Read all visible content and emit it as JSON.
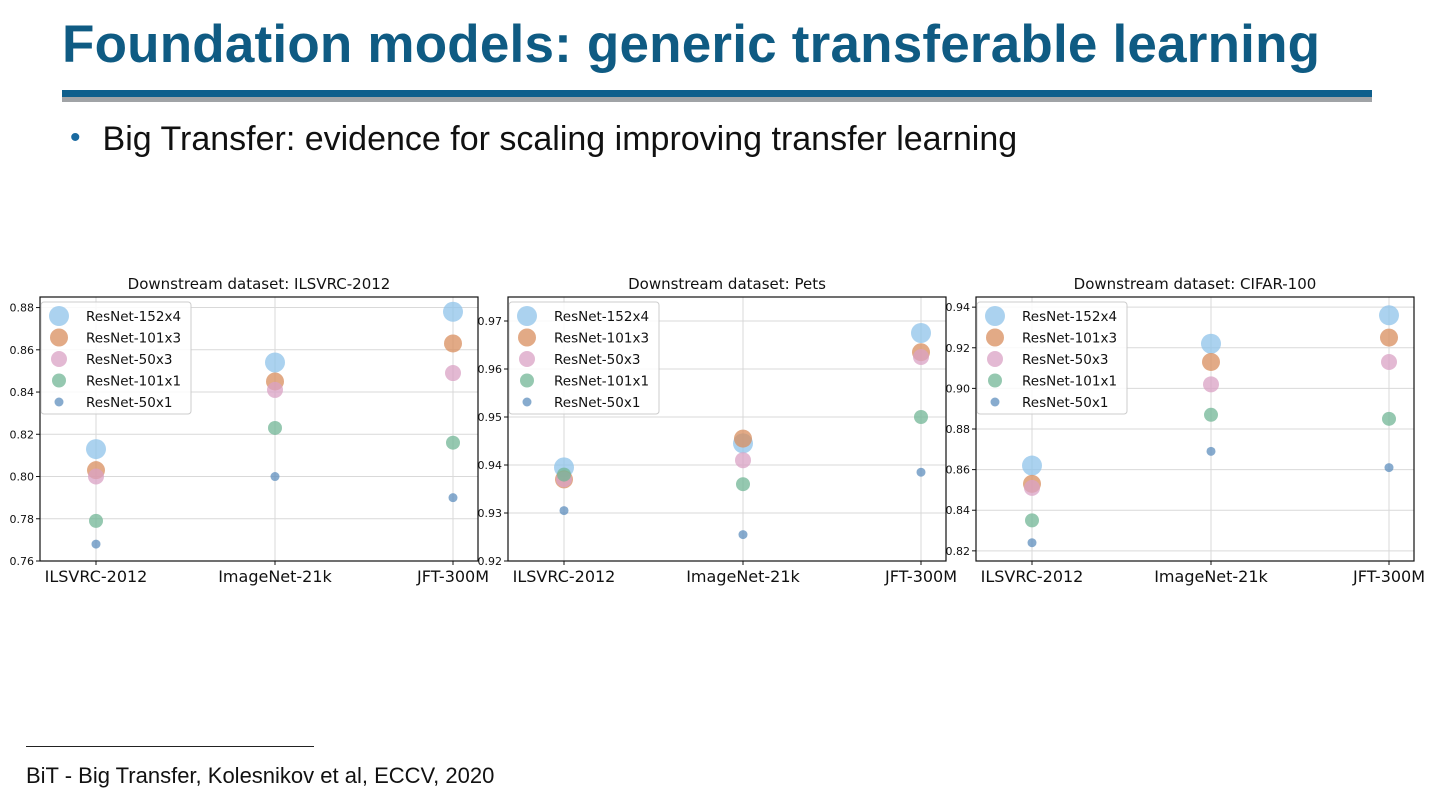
{
  "slide": {
    "title": "Foundation models: generic transferable learning",
    "bullet": "Big Transfer: evidence for scaling improving transfer learning",
    "footnote": "BiT - Big Transfer, Kolesnikov et al, ECCV, 2020",
    "colors": {
      "title": "#0f5b83",
      "rule_blue": "#0e5f8c",
      "rule_gray": "#a0a3a6"
    }
  },
  "legend": [
    {
      "name": "ResNet-152x4",
      "color": "#8fc3ea"
    },
    {
      "name": "ResNet-101x3",
      "color": "#d88e5e"
    },
    {
      "name": "ResNet-50x3",
      "color": "#d9a2c4"
    },
    {
      "name": "ResNet-101x1",
      "color": "#72b596"
    },
    {
      "name": "ResNet-50x1",
      "color": "#5f8fbd"
    }
  ],
  "chart_data": [
    {
      "type": "scatter",
      "title": "Downstream dataset: ILSVRC-2012",
      "categories": [
        "ILSVRC-2012",
        "ImageNet-21k",
        "JFT-300M"
      ],
      "ylim": [
        0.76,
        0.885
      ],
      "yticks": [
        "0.76",
        "0.78",
        "0.80",
        "0.82",
        "0.84",
        "0.86",
        "0.88"
      ],
      "grid": true,
      "legend_position": "top-left",
      "series": [
        {
          "name": "ResNet-152x4",
          "values": [
            0.813,
            0.854,
            0.878
          ]
        },
        {
          "name": "ResNet-101x3",
          "values": [
            0.803,
            0.845,
            0.863
          ]
        },
        {
          "name": "ResNet-50x3",
          "values": [
            0.8,
            0.841,
            0.849
          ]
        },
        {
          "name": "ResNet-101x1",
          "values": [
            0.779,
            0.823,
            0.816
          ]
        },
        {
          "name": "ResNet-50x1",
          "values": [
            0.768,
            0.8,
            0.79
          ]
        }
      ]
    },
    {
      "type": "scatter",
      "title": "Downstream dataset: Pets",
      "categories": [
        "ILSVRC-2012",
        "ImageNet-21k",
        "JFT-300M"
      ],
      "ylim": [
        0.92,
        0.975
      ],
      "yticks": [
        "0.92",
        "0.93",
        "0.94",
        "0.95",
        "0.96",
        "0.97"
      ],
      "grid": true,
      "legend_position": "top-left",
      "series": [
        {
          "name": "ResNet-152x4",
          "values": [
            0.9395,
            0.9445,
            0.9675
          ]
        },
        {
          "name": "ResNet-101x3",
          "values": [
            0.937,
            0.9455,
            0.9635
          ]
        },
        {
          "name": "ResNet-50x3",
          "values": [
            0.937,
            0.941,
            0.9625
          ]
        },
        {
          "name": "ResNet-101x1",
          "values": [
            0.938,
            0.936,
            0.95
          ]
        },
        {
          "name": "ResNet-50x1",
          "values": [
            0.9305,
            0.9255,
            0.9385
          ]
        }
      ]
    },
    {
      "type": "scatter",
      "title": "Downstream dataset: CIFAR-100",
      "categories": [
        "ILSVRC-2012",
        "ImageNet-21k",
        "JFT-300M"
      ],
      "ylim": [
        0.815,
        0.945
      ],
      "yticks": [
        "0.82",
        "0.84",
        "0.86",
        "0.88",
        "0.90",
        "0.92",
        "0.94"
      ],
      "grid": true,
      "legend_position": "top-left",
      "series": [
        {
          "name": "ResNet-152x4",
          "values": [
            0.862,
            0.922,
            0.936
          ]
        },
        {
          "name": "ResNet-101x3",
          "values": [
            0.853,
            0.913,
            0.925
          ]
        },
        {
          "name": "ResNet-50x3",
          "values": [
            0.851,
            0.902,
            0.913
          ]
        },
        {
          "name": "ResNet-101x1",
          "values": [
            0.835,
            0.887,
            0.885
          ]
        },
        {
          "name": "ResNet-50x1",
          "values": [
            0.824,
            0.869,
            0.861
          ]
        }
      ]
    }
  ]
}
